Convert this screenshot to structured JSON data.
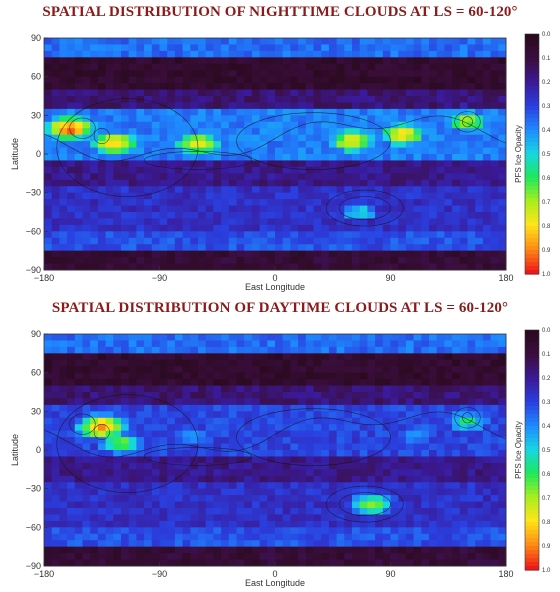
{
  "chart_data": [
    {
      "type": "heatmap",
      "title": "SPATIAL DISTRIBUTION OF NIGHTTIME CLOUDS AT LS = 60-120°",
      "xlabel": "East Longitude",
      "ylabel": "Latitude",
      "xlim": [
        -180,
        180
      ],
      "ylim": [
        -90,
        90
      ],
      "xticks": [
        "−180",
        "−90",
        "0",
        "90",
        "180"
      ],
      "yticks": [
        "90",
        "60",
        "30",
        "0",
        "−30",
        "−60",
        "−90"
      ],
      "colorbar": {
        "label": "PFS Ice Opacity",
        "range": [
          0.0,
          1.0
        ],
        "ticks": [
          "0.0",
          "0.1",
          "0.2",
          "0.3",
          "0.4",
          "0.5",
          "0.6",
          "0.7",
          "0.8",
          "0.9",
          "1.0"
        ],
        "colormap": [
          "#2a0a1e",
          "#3b0e3f",
          "#3a1a9a",
          "#2a40e0",
          "#1e8cff",
          "#17d7e0",
          "#1ee85a",
          "#a8ee1e",
          "#ffe51a",
          "#ff8c14",
          "#ee1a1a"
        ]
      },
      "features": [
        {
          "lon": -160,
          "lat": 20,
          "opacity": 0.95
        },
        {
          "lon": -125,
          "lat": 8,
          "opacity": 0.85
        },
        {
          "lon": -60,
          "lat": 8,
          "opacity": 0.8
        },
        {
          "lon": 60,
          "lat": 10,
          "opacity": 0.8
        },
        {
          "lon": 100,
          "lat": 15,
          "opacity": 0.8
        },
        {
          "lon": 150,
          "lat": 25,
          "opacity": 0.7
        },
        {
          "lon": 65,
          "lat": -45,
          "opacity": 0.5
        }
      ]
    },
    {
      "type": "heatmap",
      "title": "SPATIAL DISTRIBUTION OF DAYTIME CLOUDS AT LS = 60-120°",
      "xlabel": "East Longitude",
      "ylabel": "Latitude",
      "xlim": [
        -180,
        180
      ],
      "ylim": [
        -90,
        90
      ],
      "xticks": [
        "−180",
        "−90",
        "0",
        "90",
        "180"
      ],
      "yticks": [
        "90",
        "60",
        "30",
        "0",
        "−30",
        "−60",
        "−90"
      ],
      "colorbar": {
        "label": "PFS Ice Opacity",
        "range": [
          0.0,
          1.0
        ],
        "ticks": [
          "0.0",
          "0.1",
          "0.2",
          "0.3",
          "0.4",
          "0.5",
          "0.6",
          "0.7",
          "0.8",
          "0.9",
          "1.0"
        ],
        "colormap": [
          "#2a0a1e",
          "#3b0e3f",
          "#3a1a9a",
          "#2a40e0",
          "#1e8cff",
          "#17d7e0",
          "#1ee85a",
          "#a8ee1e",
          "#ffe51a",
          "#ff8c14",
          "#ee1a1a"
        ]
      },
      "features": [
        {
          "lon": -135,
          "lat": 18,
          "opacity": 0.9
        },
        {
          "lon": -120,
          "lat": 5,
          "opacity": 0.65
        },
        {
          "lon": -65,
          "lat": 10,
          "opacity": 0.4
        },
        {
          "lon": 75,
          "lat": -42,
          "opacity": 0.65
        },
        {
          "lon": 150,
          "lat": 22,
          "opacity": 0.55
        },
        {
          "lon": 110,
          "lat": 12,
          "opacity": 0.45
        }
      ]
    }
  ]
}
